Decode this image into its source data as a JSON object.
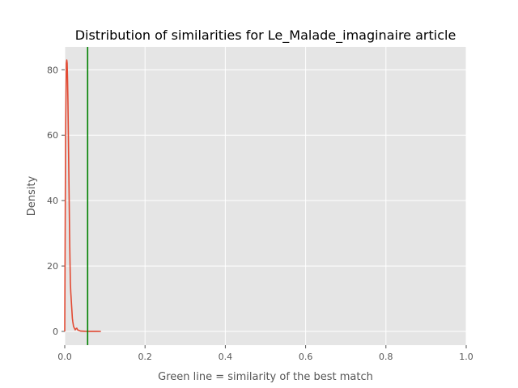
{
  "chart_data": {
    "type": "line",
    "title": "Distribution of similarities for Le_Malade_imaginaire article",
    "xlabel": "Green line = similarity of the best match",
    "ylabel": "Density",
    "xlim": [
      0.0,
      1.0
    ],
    "ylim": [
      -4.2,
      87.0
    ],
    "xticks": [
      0.0,
      0.2,
      0.4,
      0.6,
      0.8,
      1.0
    ],
    "xtick_labels": [
      "0.0",
      "0.2",
      "0.4",
      "0.6",
      "0.8",
      "1.0"
    ],
    "yticks": [
      0,
      20,
      40,
      60,
      80
    ],
    "ytick_labels": [
      "0",
      "20",
      "40",
      "60",
      "80"
    ],
    "grid": true,
    "style": "ggplot",
    "series": [
      {
        "color": "#e24a33",
        "x": [
          0.0,
          0.002,
          0.004,
          0.005,
          0.006,
          0.007,
          0.008,
          0.009,
          0.01,
          0.011,
          0.012,
          0.013,
          0.014,
          0.015,
          0.016,
          0.017,
          0.018,
          0.019,
          0.02,
          0.022,
          0.024,
          0.026,
          0.028,
          0.03,
          0.032,
          0.035,
          0.04,
          0.05,
          0.06,
          0.07,
          0.08,
          0.09
        ],
        "y": [
          0.0,
          60.0,
          82.0,
          83.0,
          82.0,
          77.0,
          70.0,
          60.0,
          50.0,
          40.0,
          30.0,
          22.0,
          15.0,
          12.0,
          10.0,
          8.0,
          6.0,
          4.0,
          3.0,
          1.5,
          1.0,
          0.5,
          0.8,
          1.0,
          0.5,
          0.3,
          0.1,
          0.05,
          0.03,
          0.02,
          0.01,
          0.0
        ]
      }
    ],
    "vline": {
      "x": 0.057,
      "color": "#008000"
    }
  }
}
